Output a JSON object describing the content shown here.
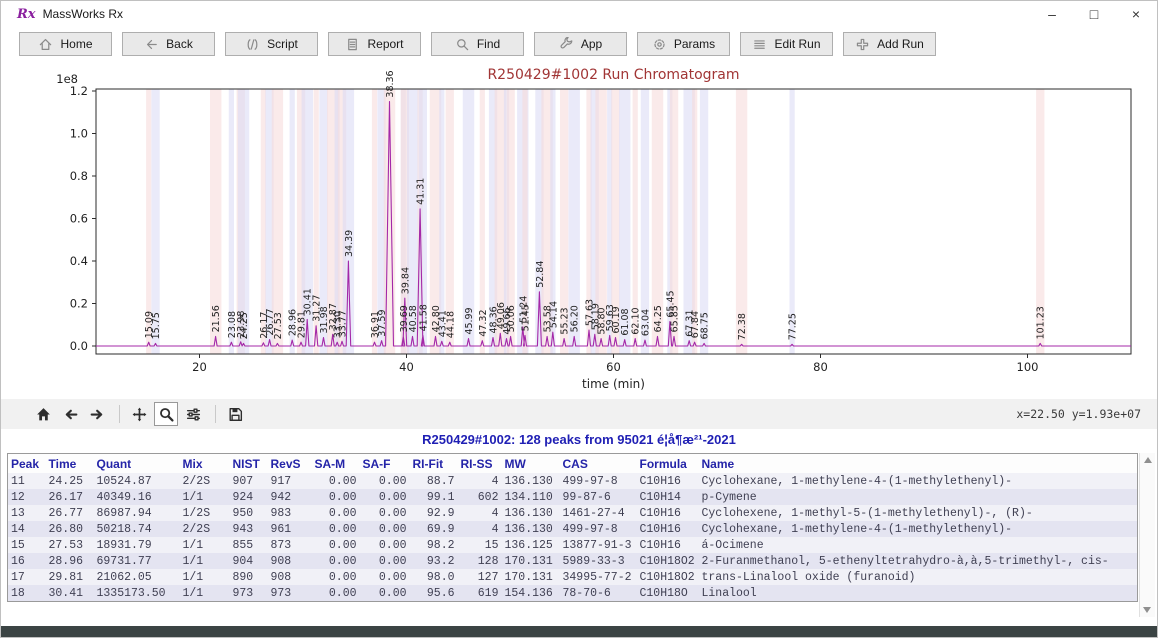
{
  "window": {
    "title": "MassWorks Rx",
    "logo": "Rx",
    "controls": {
      "minimize": "–",
      "maximize": "□",
      "close": "×"
    }
  },
  "toolbar": {
    "buttons": [
      {
        "id": "home",
        "label": "Home",
        "icon": "home-outline-icon"
      },
      {
        "id": "back",
        "label": "Back",
        "icon": "back-arrow-icon"
      },
      {
        "id": "script",
        "label": "Script",
        "icon": "script-icon"
      },
      {
        "id": "report",
        "label": "Report",
        "icon": "report-icon"
      },
      {
        "id": "find",
        "label": "Find",
        "icon": "magnifier-icon"
      },
      {
        "id": "app",
        "label": "App",
        "icon": "wrench-icon"
      },
      {
        "id": "params",
        "label": "Params",
        "icon": "gear-icon"
      },
      {
        "id": "edit-run",
        "label": "Edit Run",
        "icon": "list-lines-icon"
      },
      {
        "id": "add-run",
        "label": "Add Run",
        "icon": "plus-icon"
      }
    ]
  },
  "chart_data": {
    "type": "line",
    "title": "R250429#1002 Run Chromatogram",
    "title_color": "#a13535",
    "xlabel": "time (min)",
    "ylabel": "",
    "y_offset_label": "1e8",
    "xlim": [
      10,
      110
    ],
    "ylim": [
      0,
      1.2
    ],
    "x_ticks": [
      20,
      40,
      60,
      80,
      100
    ],
    "y_ticks": [
      0.0,
      0.2,
      0.4,
      0.6,
      0.8,
      1.0,
      1.2
    ],
    "grid": false,
    "line_color": "#a428a8",
    "band_pink": "#f6d9d9",
    "band_blue": "#d8d8f4",
    "peaks": [
      {
        "t": 15.09,
        "h": 0.018
      },
      {
        "t": 15.75,
        "h": 0.012
      },
      {
        "t": 21.56,
        "h": 0.045
      },
      {
        "t": 23.08,
        "h": 0.018
      },
      {
        "t": 23.98,
        "h": 0.02
      },
      {
        "t": 24.25,
        "h": 0.012
      },
      {
        "t": 26.17,
        "h": 0.015
      },
      {
        "t": 26.77,
        "h": 0.03
      },
      {
        "t": 27.53,
        "h": 0.012
      },
      {
        "t": 28.96,
        "h": 0.028
      },
      {
        "t": 29.81,
        "h": 0.018
      },
      {
        "t": 30.41,
        "h": 0.125
      },
      {
        "t": 31.27,
        "h": 0.095
      },
      {
        "t": 31.98,
        "h": 0.04
      },
      {
        "t": 32.87,
        "h": 0.055
      },
      {
        "t": 33.3,
        "h": 0.018
      },
      {
        "t": 33.77,
        "h": 0.022
      },
      {
        "t": 34.39,
        "h": 0.4
      },
      {
        "t": 36.91,
        "h": 0.018
      },
      {
        "t": 37.59,
        "h": 0.025
      },
      {
        "t": 38.36,
        "h": 1.15
      },
      {
        "t": 39.69,
        "h": 0.045
      },
      {
        "t": 39.84,
        "h": 0.225
      },
      {
        "t": 40.58,
        "h": 0.045
      },
      {
        "t": 41.31,
        "h": 0.645
      },
      {
        "t": 41.58,
        "h": 0.05
      },
      {
        "t": 42.8,
        "h": 0.045
      },
      {
        "t": 43.41,
        "h": 0.022
      },
      {
        "t": 44.18,
        "h": 0.018
      },
      {
        "t": 45.99,
        "h": 0.035
      },
      {
        "t": 47.32,
        "h": 0.025
      },
      {
        "t": 48.36,
        "h": 0.04
      },
      {
        "t": 49.06,
        "h": 0.06
      },
      {
        "t": 49.66,
        "h": 0.035
      },
      {
        "t": 50.06,
        "h": 0.045
      },
      {
        "t": 51.24,
        "h": 0.09
      },
      {
        "t": 51.45,
        "h": 0.05
      },
      {
        "t": 52.84,
        "h": 0.255
      },
      {
        "t": 53.58,
        "h": 0.045
      },
      {
        "t": 54.14,
        "h": 0.065
      },
      {
        "t": 55.23,
        "h": 0.035
      },
      {
        "t": 56.2,
        "h": 0.045
      },
      {
        "t": 57.63,
        "h": 0.075
      },
      {
        "t": 58.19,
        "h": 0.055
      },
      {
        "t": 58.8,
        "h": 0.035
      },
      {
        "t": 59.63,
        "h": 0.05
      },
      {
        "t": 60.19,
        "h": 0.04
      },
      {
        "t": 61.08,
        "h": 0.03
      },
      {
        "t": 62.1,
        "h": 0.035
      },
      {
        "t": 63.04,
        "h": 0.028
      },
      {
        "t": 64.25,
        "h": 0.045
      },
      {
        "t": 65.45,
        "h": 0.115
      },
      {
        "t": 65.85,
        "h": 0.045
      },
      {
        "t": 67.31,
        "h": 0.025
      },
      {
        "t": 67.84,
        "h": 0.018
      },
      {
        "t": 68.75,
        "h": 0.012
      },
      {
        "t": 72.38,
        "h": 0.008
      },
      {
        "t": 77.25,
        "h": 0.008
      },
      {
        "t": 101.23,
        "h": 0.012
      }
    ]
  },
  "nav_toolbar": {
    "coords": "x=22.50 y=1.93e+07",
    "active_tool": "zoom",
    "tools": [
      {
        "id": "home",
        "icon": "nav-home-icon"
      },
      {
        "id": "back",
        "icon": "nav-back-icon"
      },
      {
        "id": "forward",
        "icon": "nav-forward-icon"
      },
      {
        "sep": true
      },
      {
        "id": "pan",
        "icon": "nav-pan-icon"
      },
      {
        "id": "zoom",
        "icon": "nav-zoom-icon"
      },
      {
        "id": "config",
        "icon": "nav-sliders-icon"
      },
      {
        "sep": true
      },
      {
        "id": "save",
        "icon": "nav-save-icon"
      }
    ]
  },
  "table": {
    "title": "R250429#1002: 128 peaks from 95021 é¦å¶æ²¹-2021",
    "columns": [
      "Peak",
      "Time",
      "Quant",
      "Mix",
      "NIST",
      "RevS",
      "SA-M",
      "SA-F",
      "RI-Fit",
      "RI-SS",
      "MW",
      "CAS",
      "Formula",
      "Name"
    ],
    "rows": [
      [
        "11",
        "24.25",
        "10524.87",
        "2/2S",
        "907",
        "917",
        "0.00",
        "0.00",
        "88.7",
        "4",
        "136.130",
        "499-97-8",
        "C10H16",
        "Cyclohexane, 1-methylene-4-(1-methylethenyl)-"
      ],
      [
        "12",
        "26.17",
        "40349.16",
        "1/1",
        "924",
        "942",
        "0.00",
        "0.00",
        "99.1",
        "602",
        "134.110",
        "99-87-6",
        "C10H14",
        "p-Cymene"
      ],
      [
        "13",
        "26.77",
        "86987.94",
        "1/2S",
        "950",
        "983",
        "0.00",
        "0.00",
        "92.9",
        "4",
        "136.130",
        "1461-27-4",
        "C10H16",
        "Cyclohexene, 1-methyl-5-(1-methylethenyl)-, (R)-"
      ],
      [
        "14",
        "26.80",
        "50218.74",
        "2/2S",
        "943",
        "961",
        "0.00",
        "0.00",
        "69.9",
        "4",
        "136.130",
        "499-97-8",
        "C10H16",
        "Cyclohexane, 1-methylene-4-(1-methylethenyl)-"
      ],
      [
        "15",
        "27.53",
        "18931.79",
        "1/1",
        "855",
        "873",
        "0.00",
        "0.00",
        "98.2",
        "15",
        "136.125",
        "13877-91-3",
        "C10H16",
        "á-Ocimene"
      ],
      [
        "16",
        "28.96",
        "69731.77",
        "1/1",
        "904",
        "908",
        "0.00",
        "0.00",
        "93.2",
        "128",
        "170.131",
        "5989-33-3",
        "C10H18O2",
        "2-Furanmethanol, 5-ethenyltetrahydro-à,à,5-trimethyl-, cis-"
      ],
      [
        "17",
        "29.81",
        "21062.05",
        "1/1",
        "890",
        "908",
        "0.00",
        "0.00",
        "98.0",
        "127",
        "170.131",
        "34995-77-2",
        "C10H18O2",
        "trans-Linalool oxide (furanoid)"
      ],
      [
        "18",
        "30.41",
        "1335173.50",
        "1/1",
        "973",
        "973",
        "0.00",
        "0.00",
        "95.6",
        "619",
        "154.136",
        "78-70-6",
        "C10H18O",
        "Linalool"
      ]
    ]
  }
}
